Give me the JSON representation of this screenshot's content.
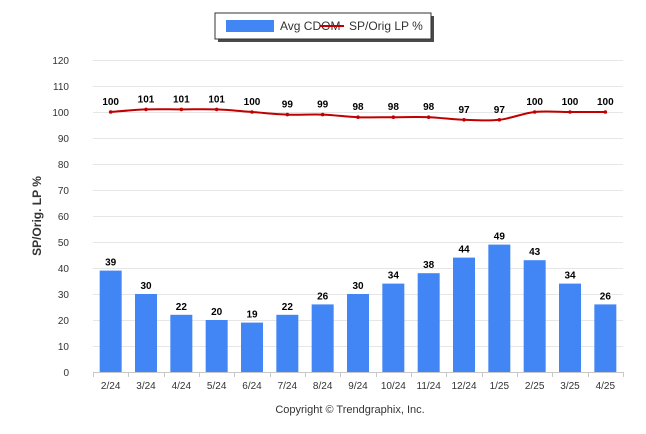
{
  "chart_data": {
    "type": "bar",
    "categories": [
      "2/24",
      "3/24",
      "4/24",
      "5/24",
      "6/24",
      "7/24",
      "8/24",
      "9/24",
      "10/24",
      "11/24",
      "12/24",
      "1/25",
      "2/25",
      "3/25",
      "4/25"
    ],
    "series": [
      {
        "name": "Avg CDOM",
        "type": "bar",
        "color": "#4285f4",
        "values": [
          39,
          30,
          22,
          20,
          19,
          22,
          26,
          30,
          34,
          38,
          44,
          49,
          43,
          34,
          26
        ]
      },
      {
        "name": "SP/Orig LP %",
        "type": "line",
        "color": "#c00000",
        "values": [
          100,
          101,
          101,
          101,
          100,
          99,
          99,
          98,
          98,
          98,
          97,
          97,
          100,
          100,
          100
        ]
      }
    ],
    "ylabel": "SP/Orig. LP %",
    "ylim": [
      0,
      120
    ],
    "yticks": [
      0,
      10,
      20,
      30,
      40,
      50,
      60,
      70,
      80,
      90,
      100,
      110,
      120
    ],
    "grid": true,
    "legend": "top-center",
    "data_labels": true
  },
  "legend": {
    "bar_label": "Avg CDOM",
    "line_label": "SP/Orig LP %"
  },
  "credit": "Copyright © Trendgraphix, Inc."
}
